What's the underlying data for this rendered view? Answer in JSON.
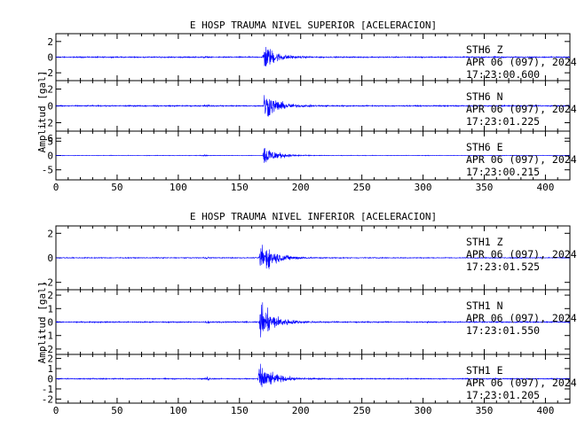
{
  "chart_data": [
    {
      "type": "line",
      "title": "E HOSP TRAUMA NIVEL SUPERIOR [ACELERACION]",
      "ylabel": "Amplitud [gal]",
      "xlabel": "",
      "xlim": [
        0,
        420
      ],
      "x_ticks": [
        0,
        50,
        100,
        150,
        200,
        250,
        300,
        350,
        400
      ],
      "grid": false,
      "series": [
        {
          "name": "STH6 Z",
          "station": "STH6",
          "component": "Z",
          "date": "APR 06 (097), 2024",
          "time": "17:23:00.600",
          "yticks": [
            2,
            0,
            -2
          ],
          "ylim": [
            -3,
            3
          ],
          "noise": 0.1,
          "peak": 3.0,
          "onset": 169,
          "decay": 9,
          "events": [
            {
              "t": 122,
              "amp": 0.15
            }
          ]
        },
        {
          "name": "STH6 N",
          "station": "STH6",
          "component": "N",
          "date": "APR 06 (097), 2024",
          "time": "17:23:01.225",
          "yticks": [
            2,
            0,
            -2
          ],
          "ylim": [
            -3,
            3
          ],
          "noise": 0.1,
          "peak": 3.0,
          "onset": 169,
          "decay": 10,
          "events": [
            {
              "t": 124,
              "amp": 0.2
            }
          ]
        },
        {
          "name": "STH6 E",
          "station": "STH6",
          "component": "E",
          "date": "APR 06 (097), 2024",
          "time": "17:23:00.215",
          "yticks": [
            6,
            5,
            0,
            -5
          ],
          "ylim": [
            -8.5,
            8.5
          ],
          "noise": 0.12,
          "peak": 6.5,
          "onset": 169,
          "decay": 9,
          "events": [
            {
              "t": 122,
              "amp": 0.3
            }
          ]
        }
      ]
    },
    {
      "type": "line",
      "title": "E HOSP TRAUMA NIVEL INFERIOR [ACELERACION]",
      "ylabel": "Amplitud [gal]",
      "xlabel": "",
      "xlim": [
        0,
        420
      ],
      "x_ticks": [
        0,
        50,
        100,
        150,
        200,
        250,
        300,
        350,
        400
      ],
      "grid": false,
      "series": [
        {
          "name": "STH1 Z",
          "station": "STH1",
          "component": "Z",
          "date": "APR 06 (097), 2024",
          "time": "17:23:01.525",
          "yticks": [
            2,
            0,
            -2
          ],
          "ylim": [
            -2.6,
            2.6
          ],
          "noise": 0.05,
          "peak": 2.3,
          "onset": 166,
          "decay": 11,
          "events": [
            {
              "t": 124,
              "amp": 0.15
            }
          ]
        },
        {
          "name": "STH1 N",
          "station": "STH1",
          "component": "N",
          "date": "APR 06 (097), 2024",
          "time": "17:23:01.550",
          "yticks": [
            2,
            1,
            0,
            -1,
            -2
          ],
          "ylim": [
            -2.4,
            2.4
          ],
          "noise": 0.06,
          "peak": 2.2,
          "onset": 166,
          "decay": 11,
          "events": [
            {
              "t": 124,
              "amp": 0.2
            }
          ]
        },
        {
          "name": "STH1 E",
          "station": "STH1",
          "component": "E",
          "date": "APR 06 (097), 2024",
          "time": "17:23:01.205",
          "yticks": [
            2,
            1,
            0,
            -1,
            -2
          ],
          "ylim": [
            -2.4,
            2.4
          ],
          "noise": 0.07,
          "peak": 2.3,
          "onset": 165,
          "decay": 11,
          "events": [
            {
              "t": 124,
              "amp": 0.3
            }
          ]
        }
      ]
    }
  ],
  "colors": {
    "trace": "#0000ff",
    "axis": "#000000",
    "background": "#ffffff"
  }
}
